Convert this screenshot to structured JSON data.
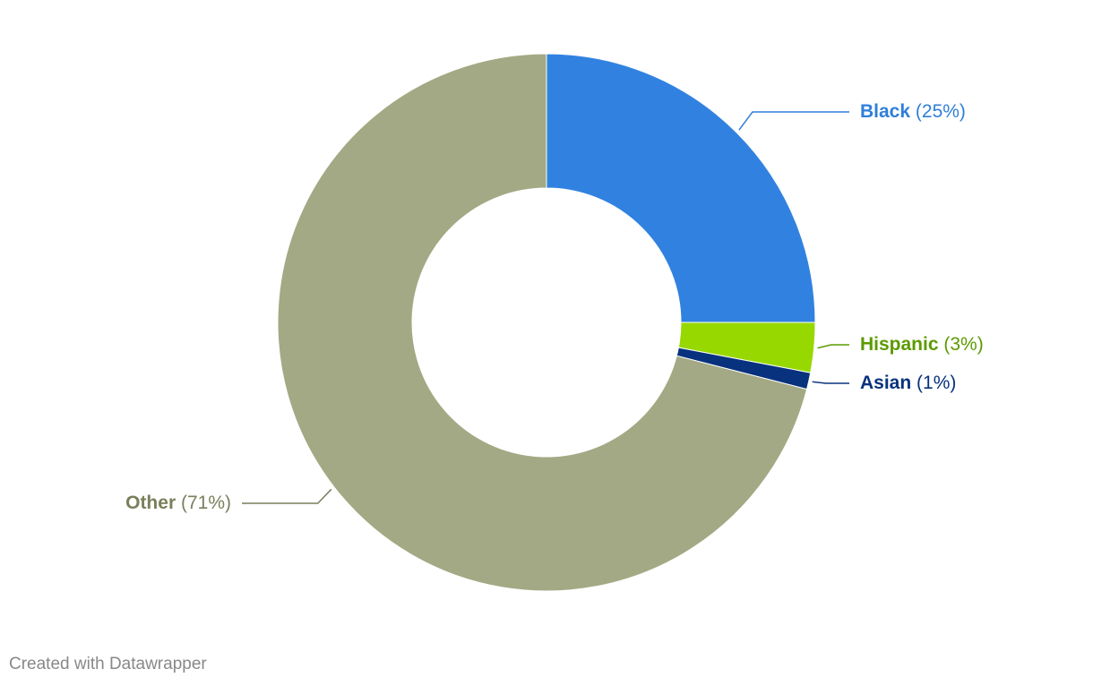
{
  "chart_data": {
    "type": "donut",
    "categories": [
      "Black",
      "Hispanic",
      "Asian",
      "Other"
    ],
    "values": [
      25,
      3,
      1,
      71
    ],
    "value_labels": [
      "(25%)",
      "(3%)",
      "(1%)",
      "(71%)"
    ],
    "colors": [
      "#3182e0",
      "#97d800",
      "#08327d",
      "#a3a984"
    ],
    "label_colors": [
      "#2f7fd9",
      "#5c9a00",
      "#08327d",
      "#7a7f5b"
    ],
    "credit": "Created with Datawrapper"
  }
}
